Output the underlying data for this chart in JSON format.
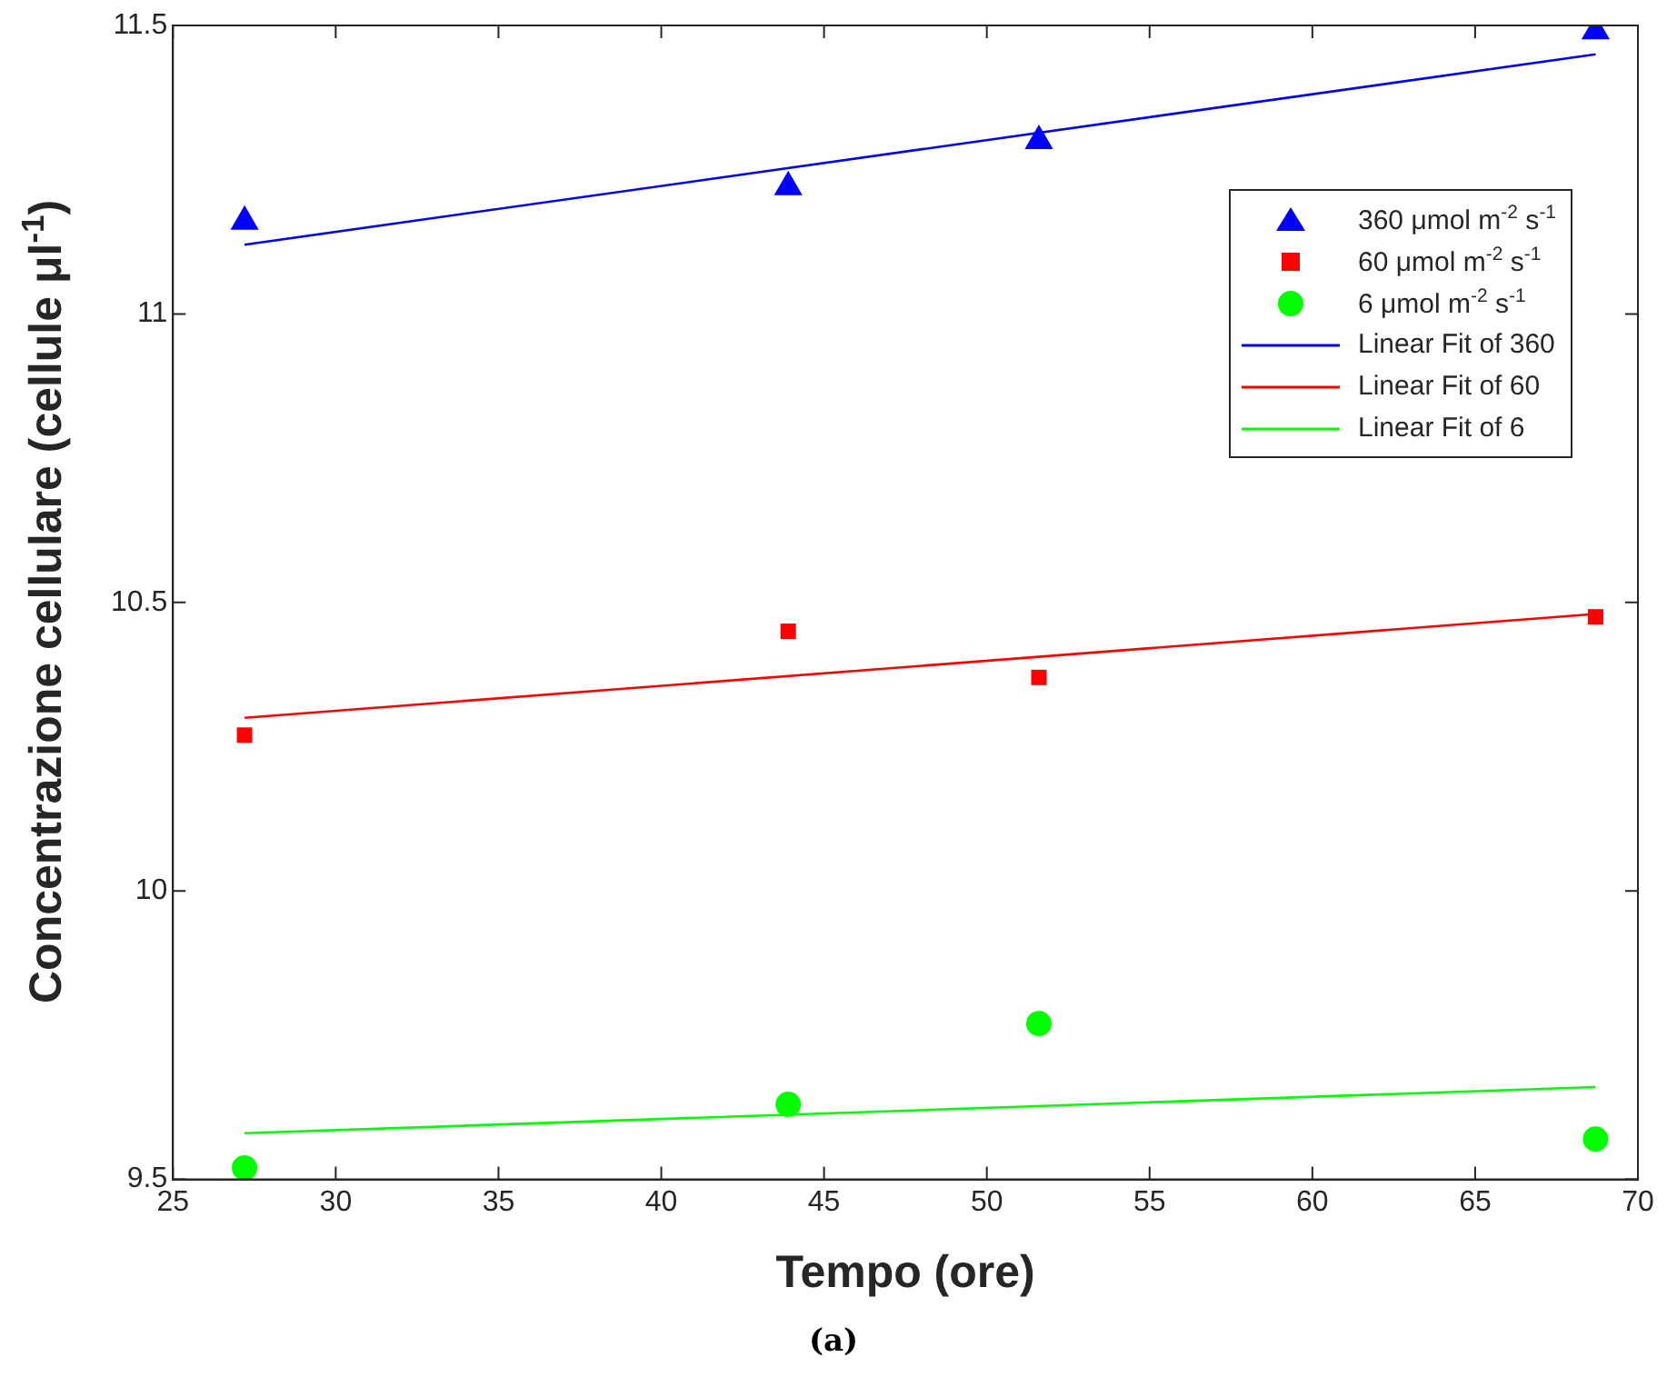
{
  "chart_data": {
    "type": "scatter",
    "xlabel": "Tempo (ore)",
    "ylabel": "Concentrazione cellulare (cellule μl$^{-1}$)",
    "annotations": [
      "(a)"
    ],
    "xlim": [
      25,
      70
    ],
    "xticks": [
      25,
      30,
      35,
      40,
      45,
      50,
      55,
      60,
      65,
      70
    ],
    "ylim": [
      9.5,
      11.5
    ],
    "yticks": [
      9.5,
      10,
      10.5,
      11,
      11.5
    ],
    "grid": false,
    "legend": "top right",
    "series": [
      {
        "name": "360 μmol m$^{-2}$ s$^{-1}$",
        "marker": "triangle",
        "color": "#0000ff",
        "x": [
          27.2,
          43.9,
          51.6,
          68.7
        ],
        "values": [
          11.16,
          11.22,
          11.3,
          11.49
        ]
      },
      {
        "name": "60 μmol m$^{-2}$ s$^{-1}$",
        "marker": "square",
        "color": "#ff0000",
        "x": [
          27.2,
          43.9,
          51.6,
          68.7
        ],
        "values": [
          10.27,
          10.45,
          10.37,
          10.475
        ]
      },
      {
        "name": "6 μmol m$^{-2}$ s$^{-1}$",
        "marker": "circle",
        "color": "#00ff00",
        "x": [
          27.2,
          43.9,
          51.6,
          68.7
        ],
        "values": [
          9.52,
          9.63,
          9.77,
          9.57
        ]
      },
      {
        "name": "Linear Fit of 360",
        "type": "line",
        "marker": "none",
        "color": "#0000ff",
        "x": [
          27.2,
          68.7
        ],
        "values": [
          11.12,
          11.45
        ]
      },
      {
        "name": "Linear Fit of 60",
        "type": "line",
        "marker": "none",
        "color": "#ff0000",
        "x": [
          27.2,
          68.7
        ],
        "values": [
          10.3,
          10.48
        ]
      },
      {
        "name": "Linear Fit of 6",
        "type": "line",
        "marker": "none",
        "color": "#00ff00",
        "x": [
          27.2,
          68.7
        ],
        "values": [
          9.58,
          9.66
        ]
      }
    ]
  }
}
